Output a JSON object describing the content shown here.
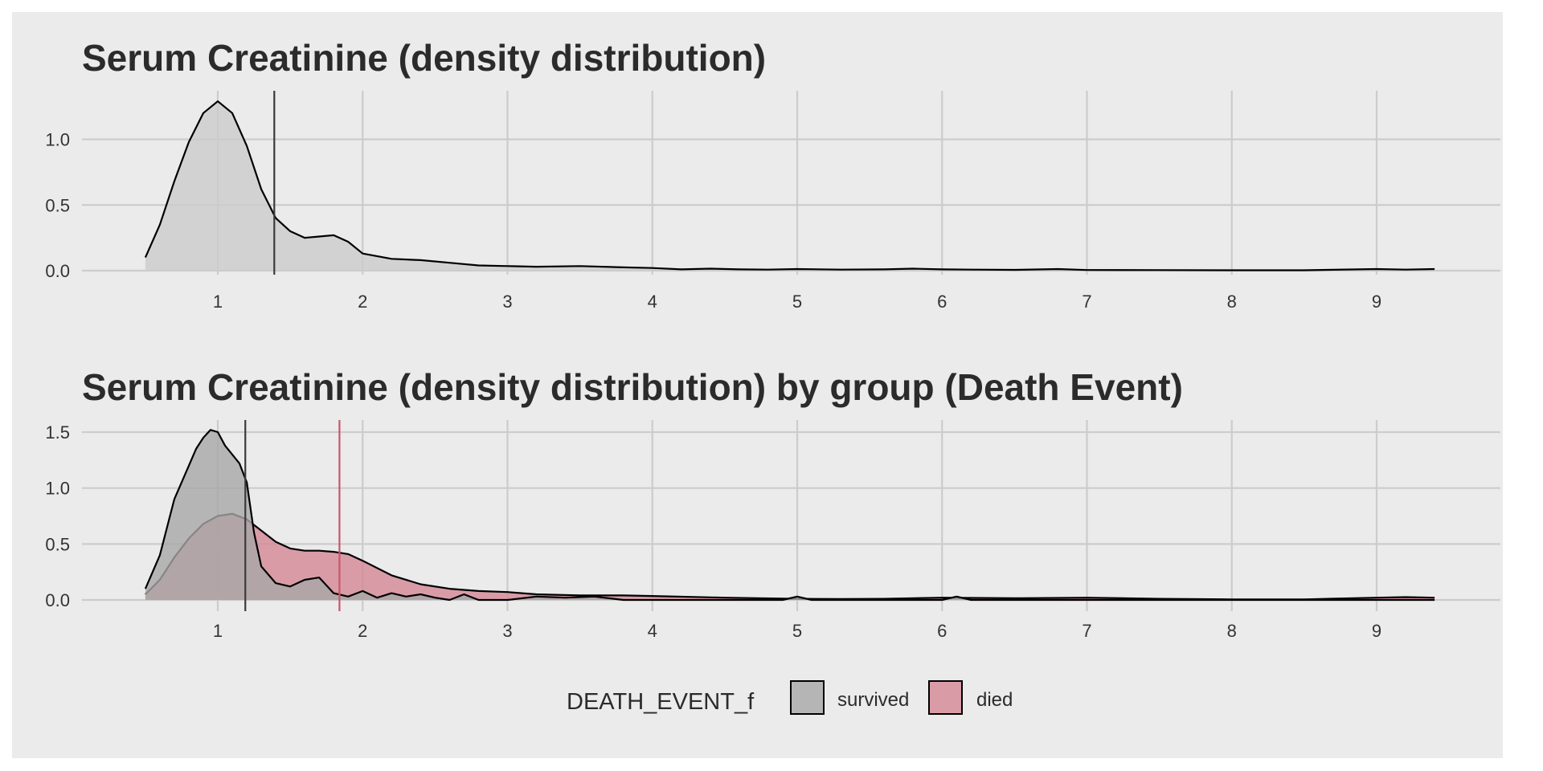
{
  "chart_data": [
    {
      "type": "area",
      "title": "Serum Creatinine (density distribution)",
      "xlabel": "",
      "ylabel": "",
      "xlim": [
        0.5,
        9.4
      ],
      "ylim": [
        0,
        1.35
      ],
      "x_ticks": [
        1,
        2,
        3,
        4,
        5,
        6,
        7,
        8,
        9
      ],
      "y_ticks": [
        0.0,
        0.5,
        1.0
      ],
      "grid": true,
      "series": [
        {
          "fill": "#cccccc",
          "x": [
            0.5,
            0.6,
            0.7,
            0.8,
            0.9,
            1.0,
            1.1,
            1.2,
            1.3,
            1.4,
            1.5,
            1.6,
            1.7,
            1.8,
            1.9,
            2.0,
            2.2,
            2.4,
            2.6,
            2.8,
            3.0,
            3.2,
            3.5,
            3.8,
            4.0,
            4.2,
            4.4,
            4.6,
            4.8,
            5.0,
            5.3,
            5.6,
            5.8,
            6.0,
            6.2,
            6.5,
            6.8,
            7.0,
            7.5,
            8.0,
            8.5,
            9.0,
            9.2,
            9.4
          ],
          "y": [
            0.1,
            0.35,
            0.68,
            0.98,
            1.2,
            1.29,
            1.2,
            0.95,
            0.62,
            0.4,
            0.3,
            0.25,
            0.26,
            0.27,
            0.22,
            0.13,
            0.09,
            0.08,
            0.06,
            0.04,
            0.035,
            0.03,
            0.035,
            0.025,
            0.02,
            0.01,
            0.015,
            0.01,
            0.008,
            0.012,
            0.008,
            0.01,
            0.015,
            0.01,
            0.008,
            0.006,
            0.012,
            0.005,
            0.004,
            0.003,
            0.003,
            0.012,
            0.008,
            0.012
          ]
        }
      ],
      "vlines": [
        {
          "x": 1.39,
          "color": "#3a3a3a"
        }
      ]
    },
    {
      "type": "area",
      "title": "Serum Creatinine (density distribution) by group (Death Event)",
      "xlabel": "",
      "ylabel": "",
      "xlim": [
        0.5,
        9.4
      ],
      "ylim": [
        0,
        1.6
      ],
      "x_ticks": [
        1,
        2,
        3,
        4,
        5,
        6,
        7,
        8,
        9
      ],
      "y_ticks": [
        0.0,
        0.5,
        1.0,
        1.5
      ],
      "grid": true,
      "legend": {
        "title": "DEATH_EVENT_f",
        "position": "bottom",
        "entries": [
          "survived",
          "died"
        ]
      },
      "series": [
        {
          "name": "died",
          "fill": "#d58896",
          "x": [
            0.5,
            0.6,
            0.7,
            0.8,
            0.9,
            1.0,
            1.1,
            1.2,
            1.3,
            1.4,
            1.5,
            1.6,
            1.7,
            1.8,
            1.9,
            2.0,
            2.2,
            2.4,
            2.6,
            2.8,
            3.0,
            3.2,
            3.5,
            3.8,
            4.0,
            4.5,
            5.0,
            5.3,
            5.6,
            6.0,
            6.5,
            7.0,
            7.5,
            8.0,
            8.5,
            9.0,
            9.2,
            9.4
          ],
          "y": [
            0.05,
            0.18,
            0.38,
            0.55,
            0.68,
            0.75,
            0.77,
            0.72,
            0.62,
            0.52,
            0.46,
            0.44,
            0.44,
            0.43,
            0.41,
            0.35,
            0.22,
            0.14,
            0.1,
            0.08,
            0.07,
            0.05,
            0.04,
            0.04,
            0.035,
            0.02,
            0.01,
            0.008,
            0.01,
            0.02,
            0.015,
            0.02,
            0.01,
            0.005,
            0.005,
            0.02,
            0.025,
            0.02
          ]
        },
        {
          "name": "survived",
          "fill": "#a8a8a8",
          "x": [
            0.5,
            0.6,
            0.7,
            0.8,
            0.85,
            0.9,
            0.95,
            1.0,
            1.05,
            1.1,
            1.15,
            1.2,
            1.25,
            1.3,
            1.4,
            1.5,
            1.6,
            1.7,
            1.8,
            1.9,
            2.0,
            2.1,
            2.2,
            2.3,
            2.4,
            2.5,
            2.6,
            2.7,
            2.8,
            3.0,
            3.2,
            3.4,
            3.6,
            3.8,
            4.0,
            4.5,
            4.9,
            5.0,
            5.1,
            5.5,
            6.0,
            6.1,
            6.2,
            6.5,
            7.0,
            7.5,
            8.0,
            8.5,
            9.0,
            9.2,
            9.4
          ],
          "y": [
            0.1,
            0.4,
            0.9,
            1.2,
            1.35,
            1.45,
            1.52,
            1.5,
            1.38,
            1.3,
            1.22,
            1.05,
            0.6,
            0.3,
            0.15,
            0.12,
            0.18,
            0.2,
            0.06,
            0.03,
            0.08,
            0.02,
            0.06,
            0.03,
            0.05,
            0.02,
            0.0,
            0.05,
            0.0,
            0.0,
            0.03,
            0.02,
            0.03,
            0.0,
            0.0,
            0.0,
            0.0,
            0.03,
            0.0,
            0.0,
            0.0,
            0.03,
            0.0,
            0.0,
            0.0,
            0.0,
            0.0,
            0.0,
            0.0,
            0.0,
            0.0
          ]
        }
      ],
      "vlines": [
        {
          "group": "survived",
          "x": 1.19,
          "color": "#3a3a3a"
        },
        {
          "group": "died",
          "x": 1.84,
          "color": "#c8566a"
        }
      ]
    }
  ]
}
